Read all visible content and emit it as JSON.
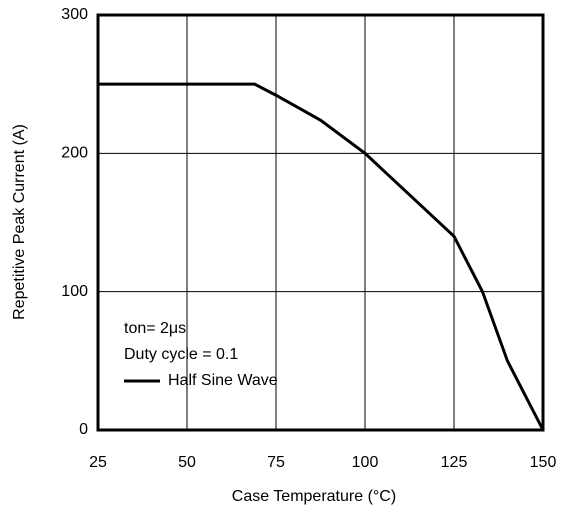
{
  "chart_data": {
    "type": "line",
    "x_label": "Case Temperature (°C)",
    "y_label": "Repetitive Peak Current (A)",
    "annotations": [
      "ton= 2μs",
      "Duty cycle = 0.1"
    ],
    "series": [
      {
        "name": "Half Sine Wave",
        "color": "#000000",
        "x": [
          25,
          69,
          75,
          87.5,
          100,
          112.5,
          125,
          133,
          140,
          150
        ],
        "values": [
          250,
          250,
          242,
          224,
          200,
          170,
          140,
          100,
          50,
          0
        ]
      }
    ],
    "xlim": [
      25,
      150
    ],
    "xticks": [
      25,
      50,
      75,
      100,
      125,
      150
    ],
    "ylim": [
      0,
      300
    ],
    "yticks": [
      0,
      100,
      200,
      300
    ],
    "grid": true
  }
}
